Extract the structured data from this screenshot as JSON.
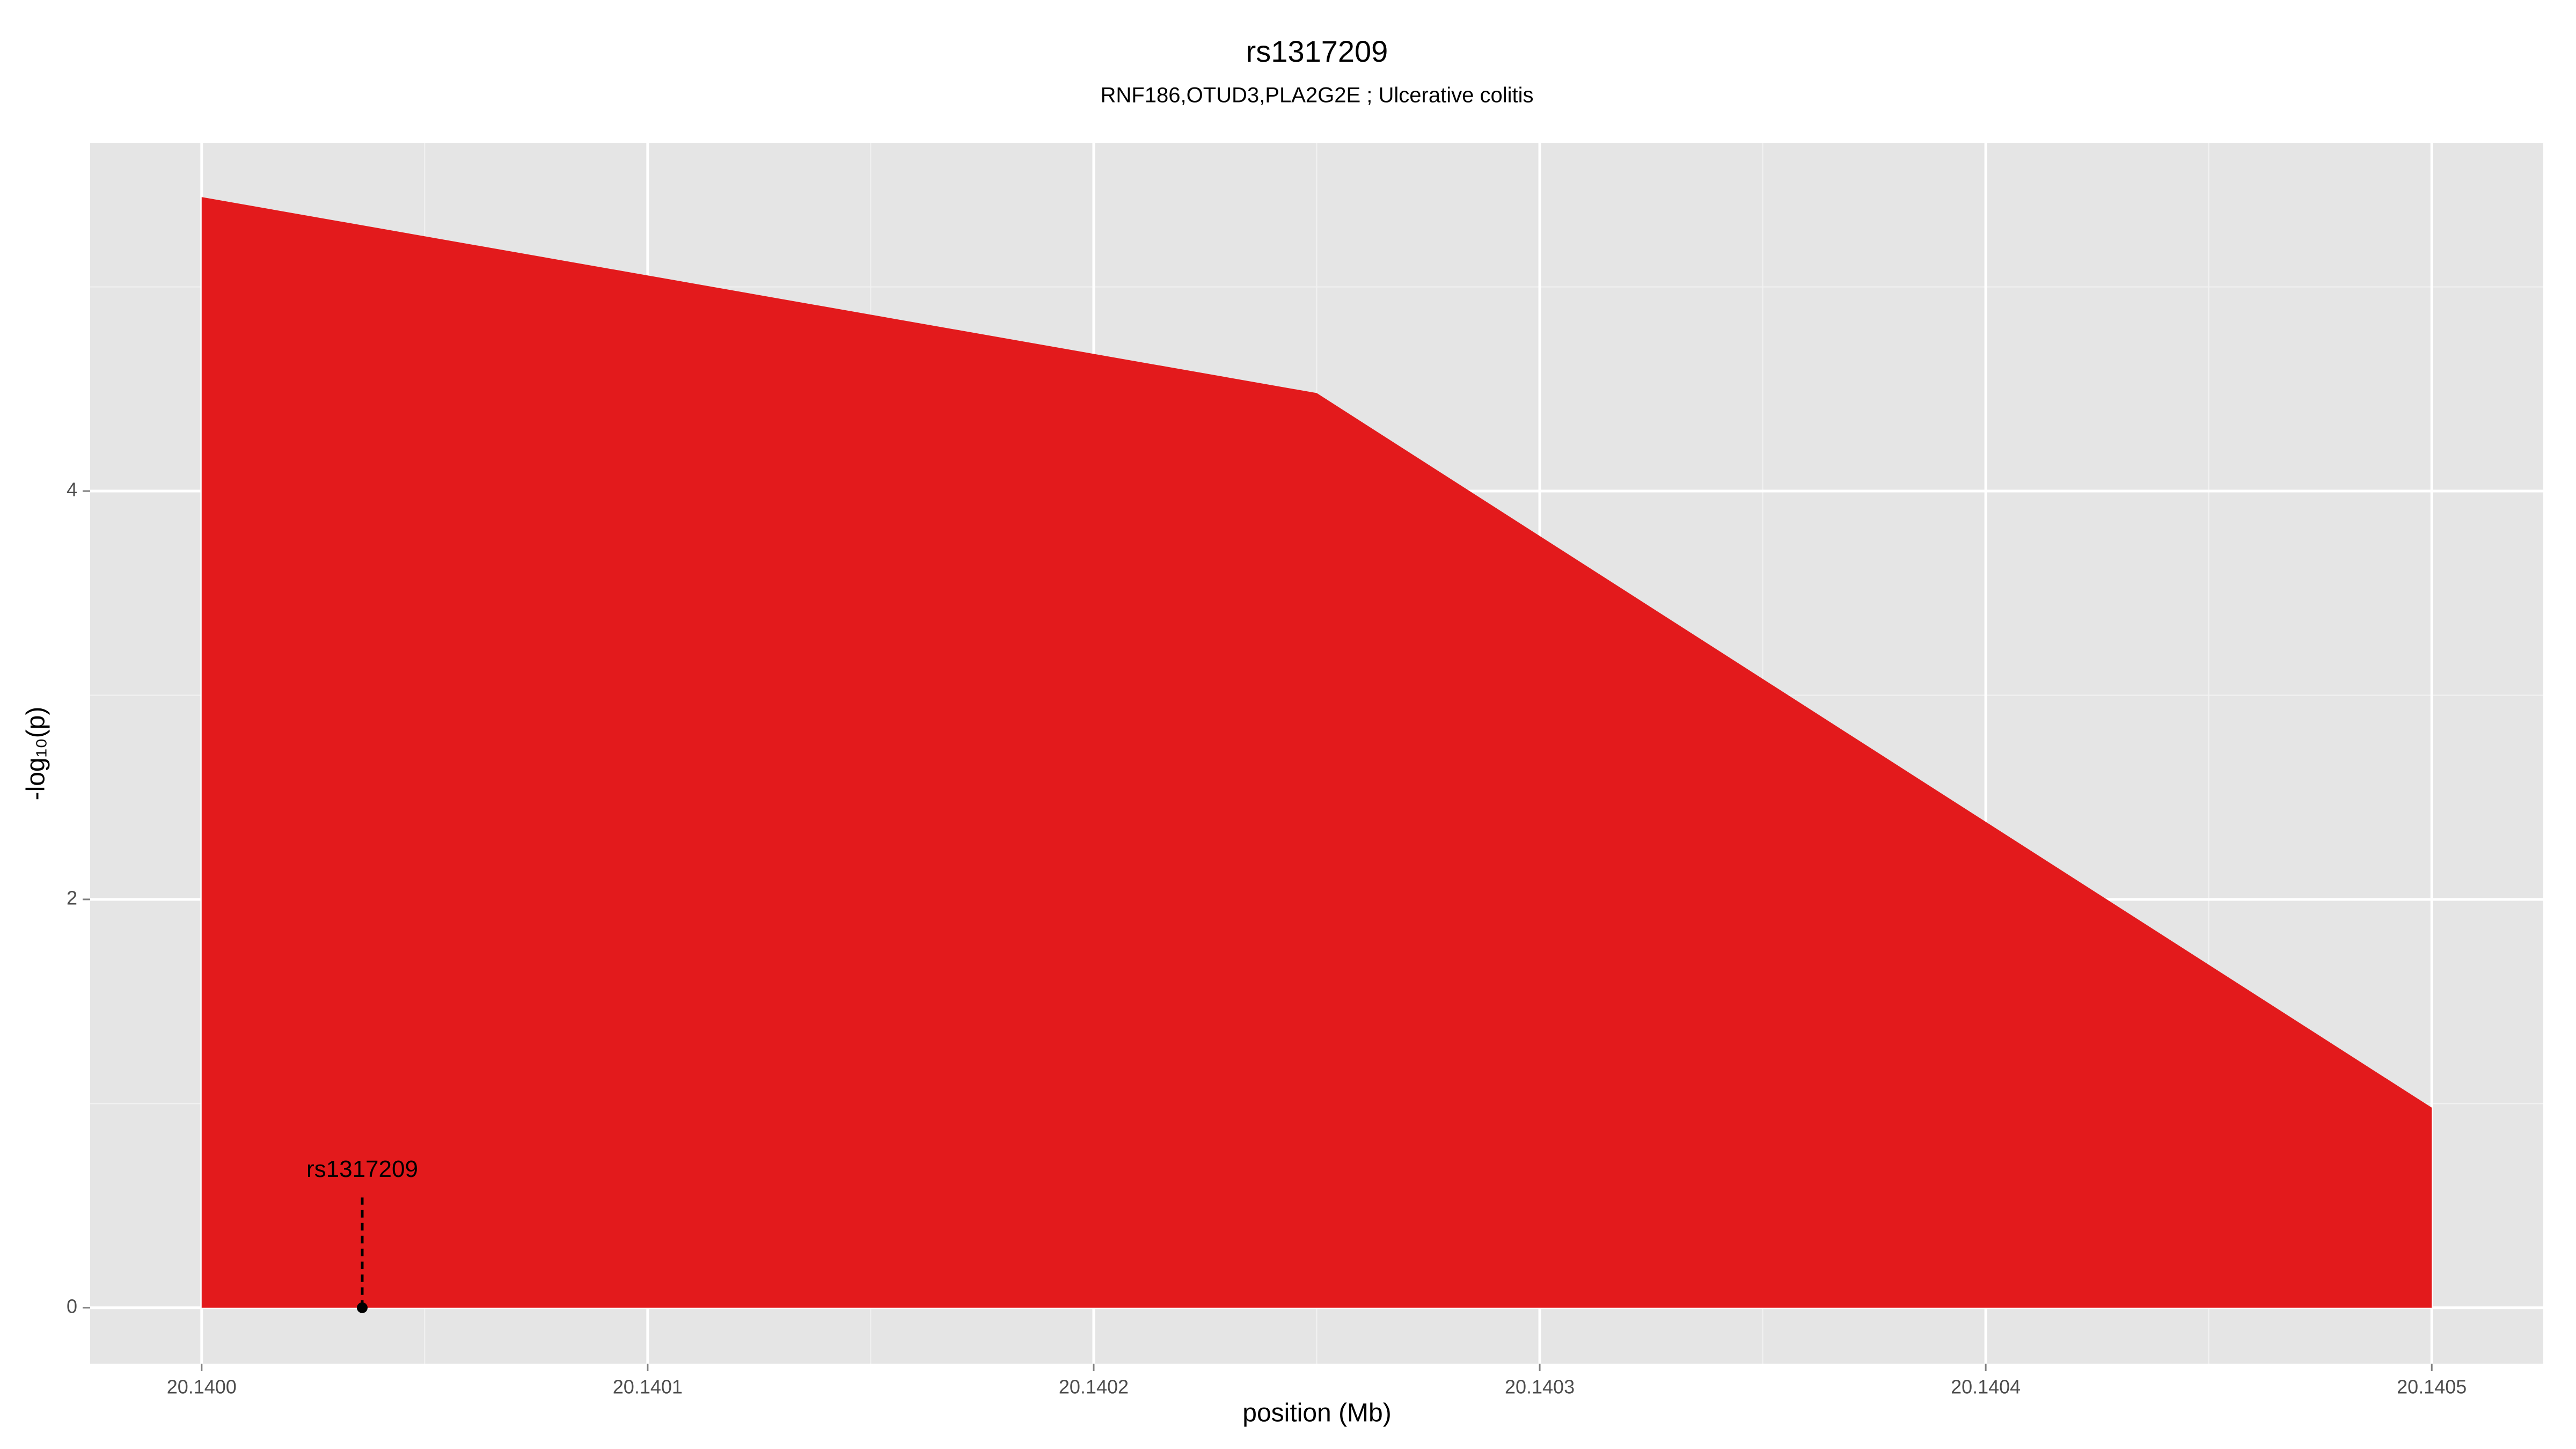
{
  "chart_data": {
    "type": "area",
    "title": "rs1317209",
    "subtitle": "RNF186,OTUD3,PLA2G2E ; Ulcerative colitis",
    "xlabel": "position (Mb)",
    "ylabel": "-log₁₀(p)",
    "x": [
      20.14,
      20.14025,
      20.1405
    ],
    "series": [
      {
        "color": "#e31a1c",
        "values": [
          5.44,
          4.48,
          0.98
        ]
      }
    ],
    "xlim": [
      20.139975,
      20.140525
    ],
    "ylim": [
      -0.274,
      5.706
    ],
    "xticks": [
      {
        "value": 20.14,
        "label": "20.1400"
      },
      {
        "value": 20.1401,
        "label": "20.1401"
      },
      {
        "value": 20.1402,
        "label": "20.1402"
      },
      {
        "value": 20.1403,
        "label": "20.1403"
      },
      {
        "value": 20.1404,
        "label": "20.1404"
      },
      {
        "value": 20.1405,
        "label": "20.1405"
      }
    ],
    "yticks": [
      0,
      2,
      4
    ],
    "grid": true,
    "annotation": {
      "text": "rs1317209",
      "x": 20.140036,
      "y": 0.54
    }
  }
}
